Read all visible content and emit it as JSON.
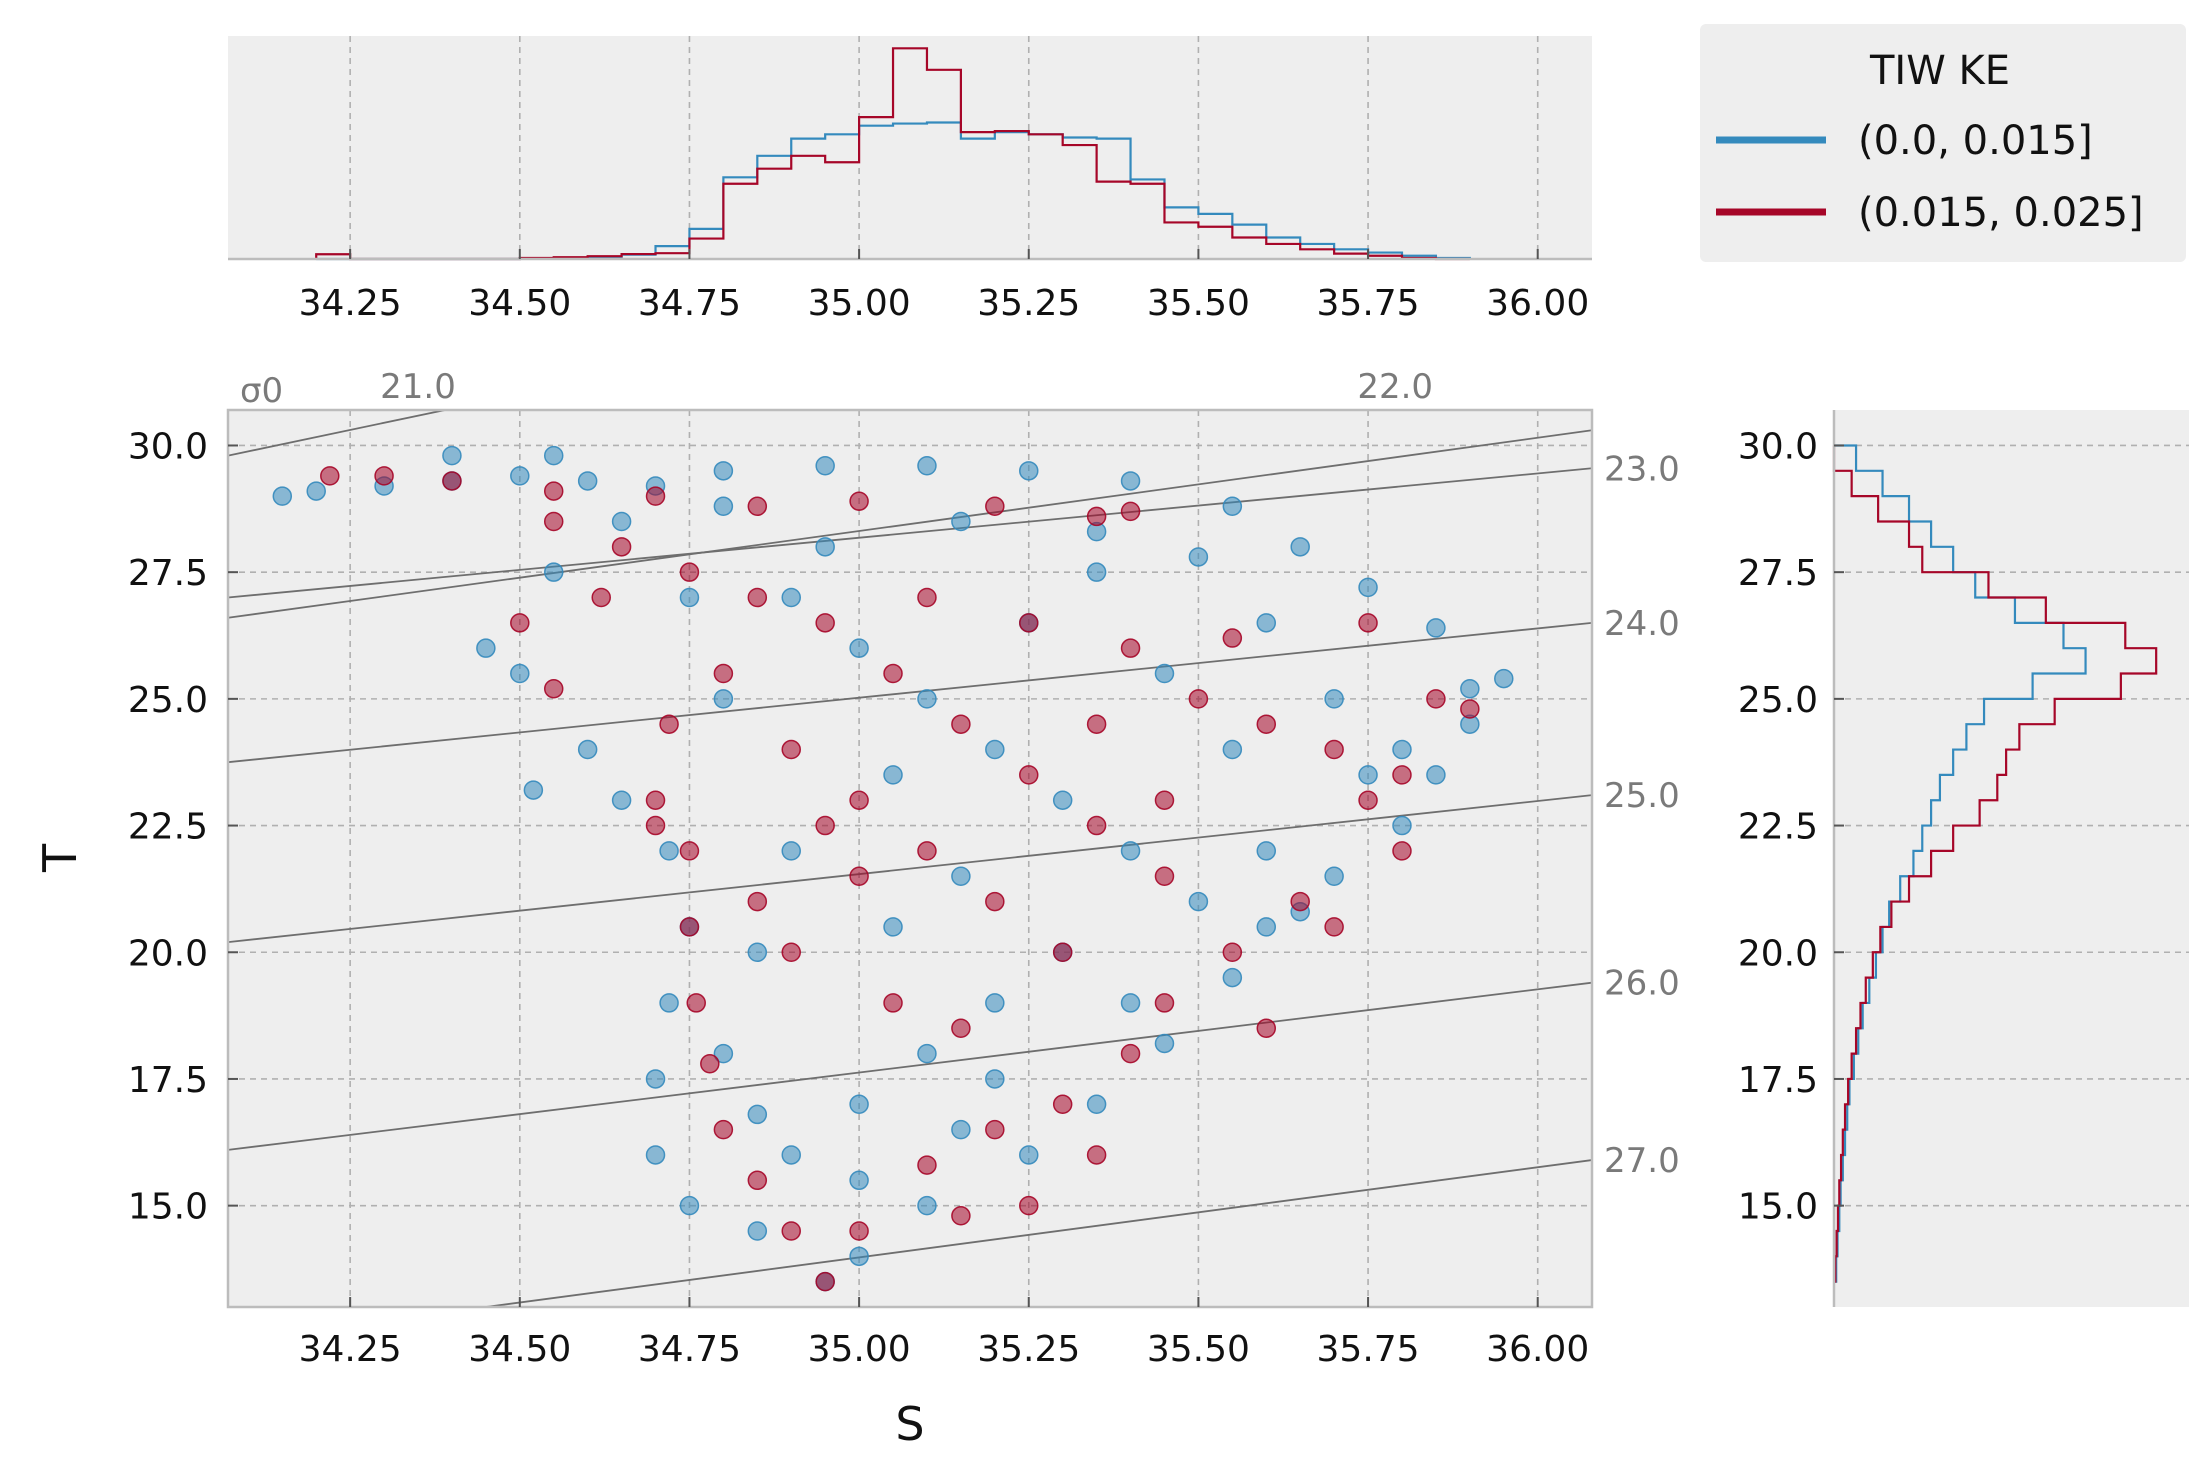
{
  "chart_data": [
    {
      "id": "main",
      "type": "scatter",
      "xlabel": "S",
      "ylabel": "T",
      "xlim": [
        34.07,
        36.08
      ],
      "ylim": [
        13.0,
        30.7
      ],
      "xticks": [
        "34.25",
        "34.50",
        "34.75",
        "35.00",
        "35.25",
        "35.50",
        "35.75",
        "36.00"
      ],
      "yticks": [
        "15.0",
        "17.5",
        "20.0",
        "22.5",
        "25.0",
        "27.5",
        "30.0"
      ],
      "grid": true,
      "density_label": "σ0",
      "density_contours": [
        {
          "label": "21.0",
          "points": [
            [
              34.07,
              29.8
            ],
            [
              34.39,
              30.7
            ]
          ]
        },
        {
          "label": "22.0",
          "points": [
            [
              34.07,
              26.6
            ],
            [
              36.08,
              30.3
            ]
          ]
        },
        {
          "label": "23.0",
          "points": [
            [
              34.07,
              27.0
            ],
            [
              36.08,
              29.55
            ]
          ]
        },
        {
          "label": "24.0",
          "points": [
            [
              34.07,
              23.75
            ],
            [
              36.08,
              26.5
            ]
          ]
        },
        {
          "label": "25.0",
          "points": [
            [
              34.07,
              20.2
            ],
            [
              36.08,
              23.1
            ]
          ]
        },
        {
          "label": "26.0",
          "points": [
            [
              34.07,
              16.1
            ],
            [
              36.08,
              19.4
            ]
          ]
        },
        {
          "label": "27.0",
          "points": [
            [
              34.45,
              13.0
            ],
            [
              36.08,
              15.9
            ]
          ]
        }
      ],
      "series": [
        {
          "name": "(0.0, 0.015]",
          "color": "#348abd",
          "points": [
            [
              34.15,
              29.0
            ],
            [
              34.2,
              29.1
            ],
            [
              34.3,
              29.2
            ],
            [
              34.4,
              29.3
            ],
            [
              34.5,
              29.4
            ],
            [
              34.6,
              29.3
            ],
            [
              34.7,
              29.2
            ],
            [
              34.8,
              29.5
            ],
            [
              34.95,
              29.6
            ],
            [
              35.1,
              29.6
            ],
            [
              35.25,
              29.5
            ],
            [
              35.4,
              29.3
            ],
            [
              35.55,
              28.8
            ],
            [
              35.65,
              28.0
            ],
            [
              35.75,
              27.2
            ],
            [
              35.85,
              26.4
            ],
            [
              35.95,
              25.4
            ],
            [
              35.9,
              24.5
            ],
            [
              35.85,
              23.5
            ],
            [
              35.8,
              22.5
            ],
            [
              35.7,
              21.5
            ],
            [
              35.65,
              20.8
            ],
            [
              35.55,
              19.5
            ],
            [
              35.45,
              18.2
            ],
            [
              35.35,
              17.0
            ],
            [
              35.25,
              16.0
            ],
            [
              35.1,
              15.0
            ],
            [
              35.0,
              14.0
            ],
            [
              34.95,
              13.5
            ],
            [
              34.85,
              14.5
            ],
            [
              34.75,
              15.0
            ],
            [
              34.7,
              16.0
            ],
            [
              34.7,
              17.5
            ],
            [
              34.72,
              19.0
            ],
            [
              34.75,
              20.5
            ],
            [
              34.72,
              22.0
            ],
            [
              34.65,
              23.0
            ],
            [
              34.6,
              24.0
            ],
            [
              34.5,
              25.5
            ],
            [
              34.45,
              26.0
            ],
            [
              34.55,
              27.5
            ],
            [
              34.65,
              28.5
            ],
            [
              34.52,
              23.2
            ],
            [
              34.4,
              29.8
            ],
            [
              34.55,
              29.8
            ],
            [
              34.8,
              28.8
            ],
            [
              34.9,
              27.0
            ],
            [
              35.0,
              26.0
            ],
            [
              35.1,
              25.0
            ],
            [
              35.2,
              24.0
            ],
            [
              35.3,
              23.0
            ],
            [
              35.4,
              22.0
            ],
            [
              35.5,
              21.0
            ],
            [
              35.3,
              20.0
            ],
            [
              35.2,
              19.0
            ],
            [
              35.1,
              18.0
            ],
            [
              35.0,
              17.0
            ],
            [
              34.9,
              16.0
            ],
            [
              34.8,
              18.0
            ],
            [
              34.85,
              20.0
            ],
            [
              34.9,
              22.0
            ],
            [
              35.05,
              23.5
            ],
            [
              35.15,
              21.5
            ],
            [
              35.25,
              26.5
            ],
            [
              35.35,
              27.5
            ],
            [
              35.45,
              25.5
            ],
            [
              35.55,
              24.0
            ],
            [
              35.6,
              26.5
            ],
            [
              35.7,
              25.0
            ],
            [
              35.75,
              23.5
            ],
            [
              35.6,
              22.0
            ],
            [
              34.95,
              28.0
            ],
            [
              35.15,
              28.5
            ],
            [
              35.35,
              28.3
            ],
            [
              35.5,
              27.8
            ],
            [
              35.05,
              20.5
            ],
            [
              35.2,
              17.5
            ],
            [
              34.8,
              25.0
            ],
            [
              34.75,
              27.0
            ],
            [
              35.0,
              15.5
            ],
            [
              34.85,
              16.8
            ],
            [
              35.15,
              16.5
            ],
            [
              35.4,
              19.0
            ],
            [
              35.6,
              20.5
            ],
            [
              35.8,
              24.0
            ],
            [
              35.9,
              25.2
            ]
          ]
        },
        {
          "name": "(0.015, 0.025]",
          "color": "#a60628",
          "points": [
            [
              34.22,
              29.4
            ],
            [
              34.3,
              29.4
            ],
            [
              34.4,
              29.3
            ],
            [
              34.55,
              29.1
            ],
            [
              34.7,
              29.0
            ],
            [
              34.85,
              28.8
            ],
            [
              35.0,
              28.9
            ],
            [
              35.2,
              28.8
            ],
            [
              35.35,
              28.6
            ],
            [
              35.4,
              28.7
            ],
            [
              34.55,
              28.5
            ],
            [
              34.65,
              28.0
            ],
            [
              34.75,
              27.5
            ],
            [
              34.85,
              27.0
            ],
            [
              34.95,
              26.5
            ],
            [
              35.1,
              27.0
            ],
            [
              35.25,
              26.5
            ],
            [
              35.4,
              26.0
            ],
            [
              35.5,
              25.0
            ],
            [
              35.6,
              24.5
            ],
            [
              35.7,
              24.0
            ],
            [
              35.75,
              23.0
            ],
            [
              35.8,
              22.0
            ],
            [
              35.85,
              25.0
            ],
            [
              35.75,
              26.5
            ],
            [
              35.65,
              21.0
            ],
            [
              35.55,
              20.0
            ],
            [
              35.45,
              19.0
            ],
            [
              35.4,
              18.0
            ],
            [
              35.3,
              17.0
            ],
            [
              35.2,
              16.5
            ],
            [
              35.1,
              15.8
            ],
            [
              35.0,
              14.5
            ],
            [
              34.95,
              13.5
            ],
            [
              34.9,
              14.5
            ],
            [
              34.85,
              15.5
            ],
            [
              34.8,
              16.5
            ],
            [
              34.78,
              17.8
            ],
            [
              34.76,
              19.0
            ],
            [
              34.75,
              20.5
            ],
            [
              34.75,
              22.0
            ],
            [
              34.7,
              23.0
            ],
            [
              34.72,
              24.5
            ],
            [
              34.8,
              25.5
            ],
            [
              34.9,
              24.0
            ],
            [
              35.0,
              23.0
            ],
            [
              35.1,
              22.0
            ],
            [
              35.2,
              21.0
            ],
            [
              35.3,
              20.0
            ],
            [
              35.0,
              21.5
            ],
            [
              34.9,
              20.0
            ],
            [
              35.05,
              19.0
            ],
            [
              35.15,
              18.5
            ],
            [
              35.25,
              23.5
            ],
            [
              35.35,
              22.5
            ],
            [
              35.45,
              21.5
            ],
            [
              35.15,
              24.5
            ],
            [
              35.05,
              25.5
            ],
            [
              34.95,
              22.5
            ],
            [
              34.85,
              21.0
            ],
            [
              35.35,
              24.5
            ],
            [
              35.45,
              23.0
            ],
            [
              34.7,
              22.5
            ],
            [
              34.5,
              26.5
            ],
            [
              34.62,
              27.0
            ],
            [
              34.55,
              25.2
            ],
            [
              35.25,
              15.0
            ],
            [
              35.15,
              14.8
            ],
            [
              35.35,
              16.0
            ],
            [
              35.6,
              18.5
            ],
            [
              35.7,
              20.5
            ],
            [
              35.8,
              23.5
            ],
            [
              35.9,
              24.8
            ],
            [
              35.55,
              26.2
            ]
          ]
        }
      ]
    },
    {
      "id": "top_hist",
      "type": "histogram",
      "xlim": [
        34.07,
        36.08
      ],
      "xticks": [
        "34.25",
        "34.50",
        "34.75",
        "35.00",
        "35.25",
        "35.50",
        "35.75",
        "36.00"
      ],
      "bin_edges": [
        34.2,
        34.25,
        34.3,
        34.35,
        34.4,
        34.45,
        34.5,
        34.55,
        34.6,
        34.65,
        34.7,
        34.75,
        34.8,
        34.85,
        34.9,
        34.95,
        35.0,
        35.05,
        35.1,
        35.15,
        35.2,
        35.25,
        35.3,
        35.35,
        35.4,
        35.45,
        35.5,
        35.55,
        35.6,
        35.65,
        35.7,
        35.75,
        35.8,
        35.85,
        35.9
      ],
      "series": [
        {
          "name": "(0.0, 0.015]",
          "color": "#348abd",
          "values": [
            0,
            0,
            0,
            0,
            0,
            0,
            0.3,
            0.5,
            0.8,
            2.0,
            6.0,
            14.0,
            38.0,
            48.0,
            56.0,
            58.0,
            62.0,
            63.0,
            63.5,
            56.0,
            59.0,
            58.0,
            56.5,
            56.0,
            37.0,
            24.0,
            21.0,
            16.0,
            10.0,
            7.0,
            4.5,
            3.0,
            1.5,
            0.5
          ]
        },
        {
          "name": "(0.015, 0.025]",
          "color": "#a60628",
          "values": [
            2.2,
            0,
            0,
            0,
            0,
            0,
            0.5,
            0.8,
            1.3,
            2.3,
            2.7,
            9.5,
            35.0,
            42.0,
            48.0,
            45.0,
            66.0,
            98.0,
            88.0,
            59.0,
            59.5,
            58.0,
            53.0,
            36.0,
            35.0,
            17.0,
            15.0,
            10.0,
            7.0,
            4.5,
            2.5,
            1.5,
            0.5,
            0
          ]
        }
      ]
    },
    {
      "id": "right_hist",
      "type": "histogram",
      "orientation": "horizontal",
      "ylim": [
        13.0,
        30.7
      ],
      "yticks": [
        "15.0",
        "17.5",
        "20.0",
        "22.5",
        "25.0",
        "27.5",
        "30.0"
      ],
      "bin_edges": [
        13.5,
        14.0,
        14.5,
        15.0,
        15.5,
        16.0,
        16.5,
        17.0,
        17.5,
        18.0,
        18.5,
        19.0,
        19.5,
        20.0,
        20.5,
        21.0,
        21.5,
        22.0,
        22.5,
        23.0,
        23.5,
        24.0,
        24.5,
        25.0,
        25.5,
        26.0,
        26.5,
        27.0,
        27.5,
        28.0,
        28.5,
        29.0,
        29.5,
        30.0
      ],
      "series": [
        {
          "name": "(0.0, 0.015]",
          "color": "#348abd",
          "values": [
            0.5,
            0.8,
            1.2,
            1.5,
            2.0,
            2.5,
            3.0,
            3.5,
            4.5,
            5.5,
            6.5,
            8.0,
            9.5,
            11.0,
            12.5,
            15.0,
            18.0,
            20.0,
            22.0,
            24.0,
            27.0,
            30.0,
            34.0,
            45.0,
            57.0,
            52.0,
            41.0,
            32.0,
            27.0,
            22.0,
            17.0,
            11.0,
            5.0
          ]
        },
        {
          "name": "(0.015, 0.025]",
          "color": "#a60628",
          "values": [
            0.3,
            0.6,
            0.9,
            1.2,
            1.6,
            2.0,
            2.5,
            3.2,
            4.0,
            5.0,
            6.0,
            7.2,
            8.8,
            10.5,
            13.0,
            17.0,
            22.0,
            27.0,
            33.0,
            37.0,
            39.0,
            42.0,
            50.0,
            65.0,
            73.0,
            66.0,
            48.0,
            35.0,
            20.0,
            17.0,
            10.0,
            4.0,
            0
          ]
        }
      ]
    }
  ],
  "legend": {
    "title": "TIW KE",
    "entries": [
      {
        "label": "(0.0, 0.015]",
        "color": "#348abd"
      },
      {
        "label": "(0.015, 0.025]",
        "color": "#a60628"
      }
    ]
  }
}
